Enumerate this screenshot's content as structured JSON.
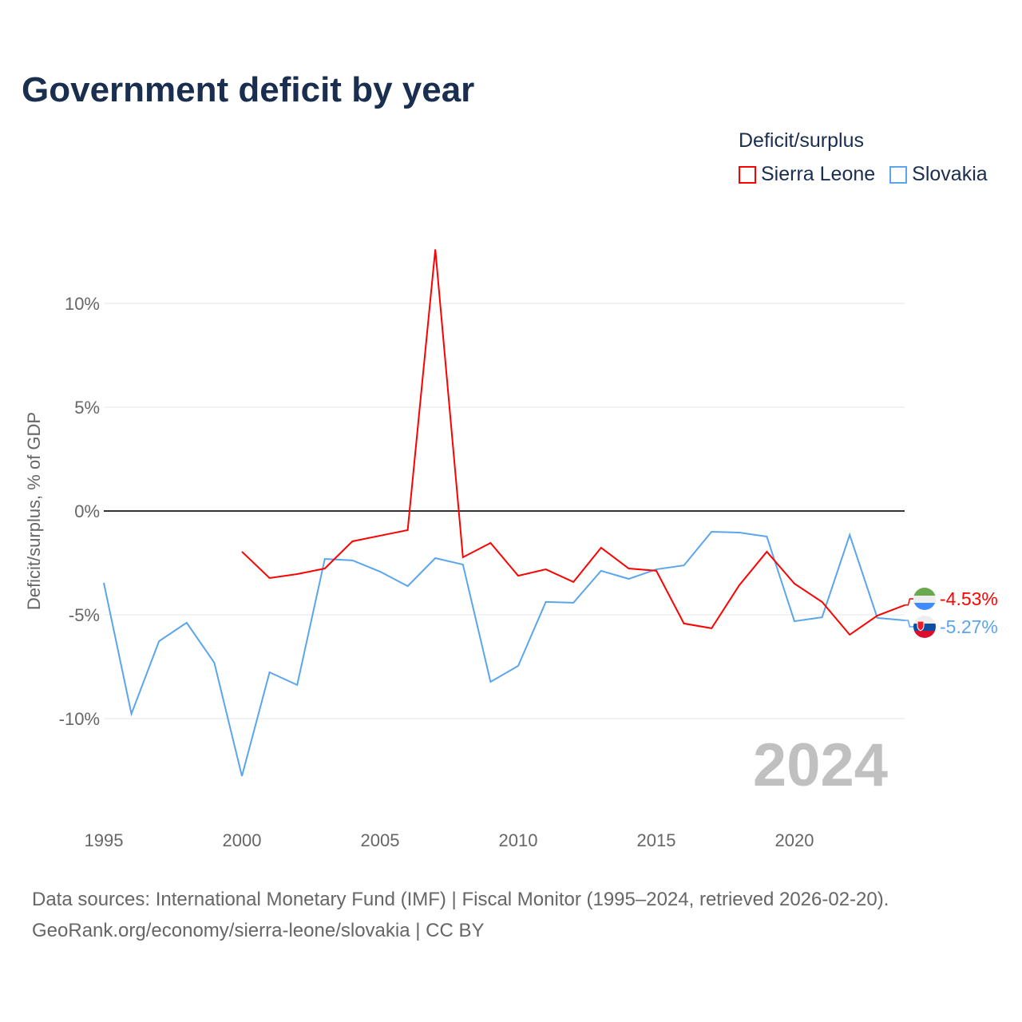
{
  "title": "Government deficit by year",
  "legend": {
    "title": "Deficit/surplus",
    "items": [
      {
        "label": "Sierra Leone",
        "color": "#ff0000"
      },
      {
        "label": "Slovakia",
        "color": "#5aa5ec"
      }
    ]
  },
  "footer": {
    "line1": "Data sources: International Monetary Fund (IMF) | Fiscal Monitor (1995–2024, retrieved 2026-02-20).",
    "line2": "GeoRank.org/economy/sierra-leone/slovakia | CC BY"
  },
  "chart_data": {
    "type": "line",
    "title": "Government deficit by year",
    "ylabel": "Deficit/surplus, % of GDP",
    "xlabel": "",
    "xlim": [
      1995,
      2024
    ],
    "ylim": [
      -14,
      14
    ],
    "x_ticks": [
      1995,
      2000,
      2005,
      2010,
      2015,
      2020
    ],
    "y_ticks": [
      {
        "v": 10,
        "label": "10%"
      },
      {
        "v": 5,
        "label": "5%"
      },
      {
        "v": 0,
        "label": "0%"
      },
      {
        "v": -5,
        "label": "-5%"
      },
      {
        "v": -10,
        "label": "-10%"
      }
    ],
    "year_watermark": "2024",
    "grid": true,
    "series": [
      {
        "name": "Sierra Leone",
        "color": "#ff0000",
        "end_label": "-4.53%",
        "start": 2000,
        "values": [
          -1.96,
          -3.23,
          -3.04,
          -2.77,
          -1.46,
          -1.19,
          -0.92,
          12.6,
          -2.23,
          -1.54,
          -3.12,
          -2.81,
          -3.42,
          -1.77,
          -2.77,
          -2.88,
          -5.42,
          -5.65,
          -3.58,
          -1.96,
          -3.5,
          -4.38,
          -5.96,
          -5.04,
          -4.53
        ]
      },
      {
        "name": "Slovakia",
        "color": "#5aa5ec",
        "end_label": "-5.27%",
        "start": 1995,
        "values": [
          -3.46,
          -9.77,
          -6.27,
          -5.38,
          -7.31,
          -12.77,
          -7.77,
          -8.38,
          -2.31,
          -2.38,
          -2.92,
          -3.62,
          -2.27,
          -2.58,
          -8.23,
          -7.46,
          -4.38,
          -4.42,
          -2.88,
          -3.27,
          -2.81,
          -2.62,
          -1.0,
          -1.04,
          -1.23,
          -5.31,
          -5.12,
          -1.15,
          -5.15,
          -5.27
        ]
      }
    ]
  }
}
